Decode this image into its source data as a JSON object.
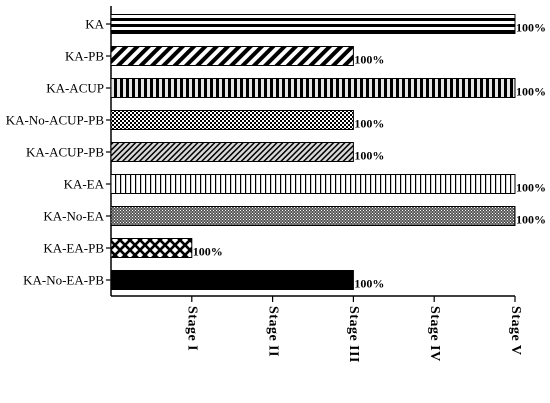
{
  "chart_data": {
    "type": "bar",
    "orientation": "horizontal",
    "categories": [
      "KA",
      "KA-PB",
      "KA-ACUP",
      "KA-No-ACUP-PB",
      "KA-ACUP-PB",
      "KA-EA",
      "KA-No-EA",
      "KA-EA-PB",
      "KA-No-EA-PB"
    ],
    "values": [
      5,
      3,
      5,
      3,
      3,
      5,
      5,
      1,
      3
    ],
    "data_labels": [
      "100%",
      "100%",
      "100%",
      "100%",
      "100%",
      "100%",
      "100%",
      "100%",
      "100%"
    ],
    "x_ticks": [
      "Stage I",
      "Stage II",
      "Stage III",
      "Stage IV",
      "Stage V"
    ],
    "xlim": [
      0,
      5
    ],
    "patterns": [
      "horizontal-stripes",
      "diagonal-stripes",
      "vertical-stripes-thick",
      "fine-crosshatch",
      "light-diagonal",
      "vertical-stripes-thin",
      "dense-crosshatch",
      "diamond-crosshatch",
      "solid"
    ],
    "grid": false,
    "legend": false,
    "colors": {
      "bar": "#000000",
      "axis": "#000000"
    }
  }
}
